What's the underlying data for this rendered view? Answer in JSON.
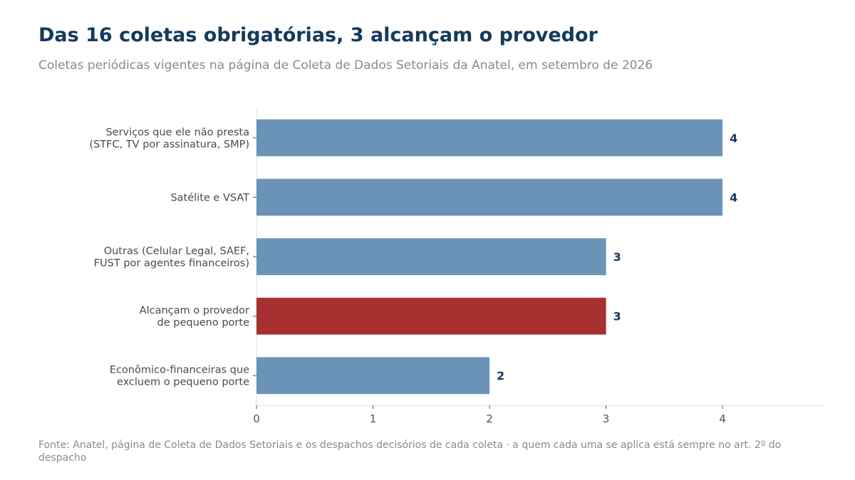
{
  "title": "Das 16 coletas obrigatórias, 3 alcançam o provedor",
  "subtitle": "Coletas periódicas vigentes na página de Coleta de Dados Setoriais da Anatel, em setembro de 2026",
  "source": "Fonte: Anatel, página de Coleta de Dados Setoriais e os despachos decisórios de cada coleta · a quem cada uma se aplica está sempre no art. 2º do despacho",
  "chart_data": {
    "type": "bar",
    "orientation": "horizontal",
    "categories": [
      [
        "Serviços que ele não presta",
        "(STFC, TV por assinatura, SMP)"
      ],
      [
        "Satélite e VSAT"
      ],
      [
        "Outras (Celular Legal, SAEF,",
        "FUST por agentes financeiros)"
      ],
      [
        "Alcançam o provedor",
        "de pequeno porte"
      ],
      [
        "Econômico-financeiras que",
        "excluem o pequeno porte"
      ]
    ],
    "values": [
      4,
      4,
      3,
      3,
      2
    ],
    "highlight_index": 3,
    "colors": {
      "default": "#6b93b8",
      "highlight": "#a63030",
      "value_label": "#143a5c"
    },
    "xlim": [
      0,
      4.88
    ],
    "xticks": [
      0,
      1,
      2,
      3,
      4
    ],
    "xlabel": "",
    "ylabel": "",
    "grid": false,
    "data_labels": true
  }
}
